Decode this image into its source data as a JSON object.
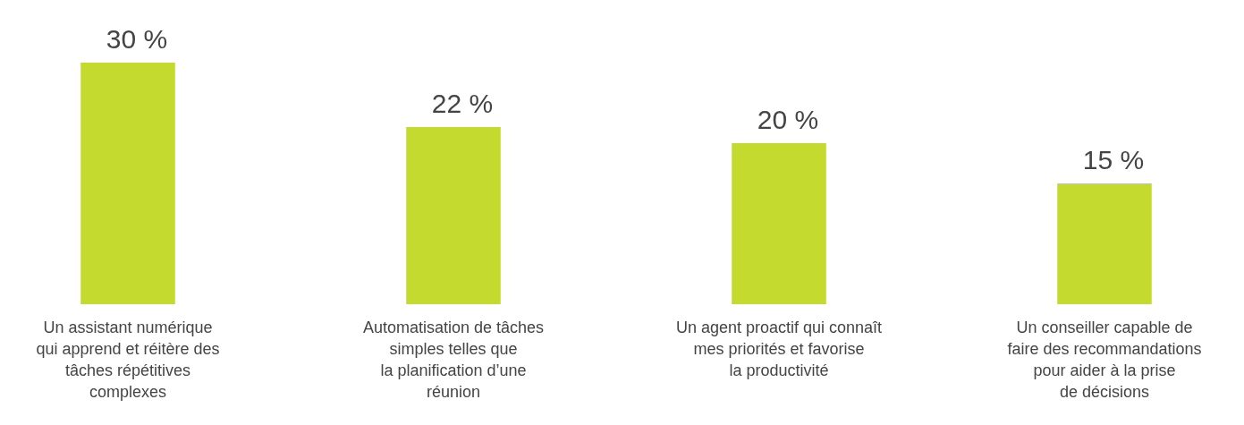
{
  "chart_data": {
    "type": "bar",
    "categories": [
      "Un assistant numérique\nqui apprend et réitère des\ntâches répétitives\ncomplexes",
      "Automatisation de tâches\nsimples telles que\nla planification d’une\nréunion",
      "Un agent proactif qui connaît\nmes priorités et favorise\nla productivité",
      "Un conseiller capable de\nfaire des recommandations\npour aider à la prise\nde décisions"
    ],
    "values": [
      30,
      22,
      20,
      15
    ],
    "value_labels": [
      "30 %",
      "22 %",
      "20 %",
      "15 %"
    ],
    "color": "#c5da2f"
  }
}
